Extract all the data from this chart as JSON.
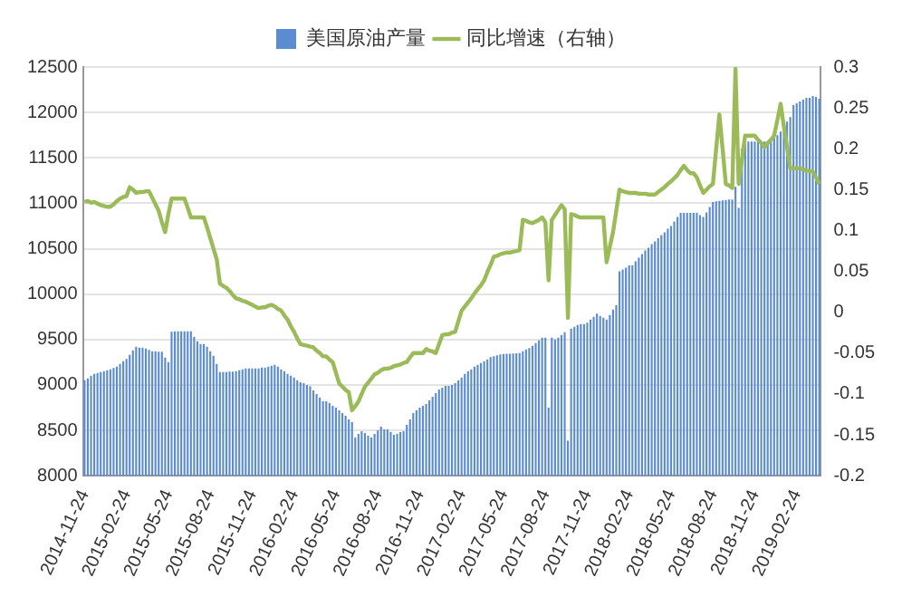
{
  "chart_data": {
    "type": "bar",
    "legend": "top",
    "grid": "y",
    "categories": [
      "2014-11-24",
      null,
      null,
      null,
      null,
      null,
      null,
      null,
      null,
      null,
      null,
      null,
      null,
      "2015-02-24",
      null,
      null,
      null,
      null,
      null,
      null,
      null,
      null,
      null,
      null,
      null,
      null,
      "2015-05-24",
      null,
      null,
      null,
      null,
      null,
      null,
      null,
      null,
      null,
      null,
      null,
      null,
      "2015-08-24",
      null,
      null,
      null,
      null,
      null,
      null,
      null,
      null,
      null,
      null,
      null,
      null,
      "2015-11-24",
      null,
      null,
      null,
      null,
      null,
      null,
      null,
      null,
      null,
      null,
      null,
      null,
      "2016-02-24",
      null,
      null,
      null,
      null,
      null,
      null,
      null,
      null,
      null,
      null,
      null,
      null,
      "2016-05-24",
      null,
      null,
      null,
      null,
      null,
      null,
      null,
      null,
      null,
      null,
      null,
      null,
      "2016-08-24",
      null,
      null,
      null,
      null,
      null,
      null,
      null,
      null,
      null,
      null,
      null,
      null,
      "2016-11-24",
      null,
      null,
      null,
      null,
      null,
      null,
      null,
      null,
      null,
      null,
      null,
      null,
      "2017-02-24",
      null,
      null,
      null,
      null,
      null,
      null,
      null,
      null,
      null,
      null,
      null,
      null,
      "2017-05-24",
      null,
      null,
      null,
      null,
      null,
      null,
      null,
      null,
      null,
      null,
      null,
      null,
      "2017-08-24",
      null,
      null,
      null,
      null,
      null,
      null,
      null,
      null,
      null,
      null,
      null,
      null,
      "2017-11-24",
      null,
      null,
      null,
      null,
      null,
      null,
      null,
      null,
      null,
      null,
      null,
      null,
      "2018-02-24",
      null,
      null,
      null,
      null,
      null,
      null,
      null,
      null,
      null,
      null,
      null,
      null,
      "2018-05-24",
      null,
      null,
      null,
      null,
      null,
      null,
      null,
      null,
      null,
      null,
      null,
      null,
      "2018-08-24",
      null,
      null,
      null,
      null,
      null,
      null,
      null,
      null,
      null,
      null,
      null,
      null,
      "2018-11-24",
      null,
      null,
      null,
      null,
      null,
      null,
      null,
      null,
      null,
      null,
      null,
      null,
      "2019-02-24",
      null,
      null,
      null,
      null,
      null,
      null,
      null
    ],
    "ylim": [
      8000,
      12500
    ],
    "yticks": [
      8000,
      8500,
      9000,
      9500,
      10000,
      10500,
      11000,
      11500,
      12000,
      12500
    ],
    "y2lim": [
      -0.2,
      0.3
    ],
    "y2ticks": [
      -0.2,
      -0.15,
      -0.1,
      -0.05,
      0,
      0.05,
      0.1,
      0.15,
      0.2,
      0.25,
      0.3
    ],
    "series": [
      {
        "name": "美国原油产量",
        "color": "#5b8bd0",
        "values": [
          9050,
          9070,
          9100,
          9120,
          9130,
          9140,
          9150,
          9160,
          9170,
          9185,
          9200,
          9230,
          9260,
          9285,
          9330,
          9380,
          9420,
          9410,
          9410,
          9400,
          9385,
          9370,
          9370,
          9365,
          9365,
          9300,
          9250,
          9585,
          9590,
          9590,
          9590,
          9590,
          9590,
          9590,
          9530,
          9480,
          9450,
          9450,
          9420,
          9370,
          9320,
          9230,
          9140,
          9140,
          9140,
          9145,
          9145,
          9150,
          9160,
          9170,
          9180,
          9180,
          9180,
          9180,
          9180,
          9190,
          9190,
          9200,
          9210,
          9220,
          9200,
          9170,
          9150,
          9120,
          9100,
          9080,
          9050,
          9030,
          9020,
          9000,
          8985,
          8940,
          8900,
          8860,
          8820,
          8820,
          8800,
          8770,
          8750,
          8720,
          8690,
          8660,
          8620,
          8590,
          8420,
          8460,
          8490,
          8470,
          8440,
          8420,
          8460,
          8500,
          8540,
          8510,
          8510,
          8480,
          8450,
          8460,
          8480,
          8490,
          8560,
          8620,
          8690,
          8720,
          8750,
          8770,
          8790,
          8830,
          8870,
          8910,
          8950,
          8970,
          8990,
          8990,
          9000,
          9020,
          9050,
          9080,
          9120,
          9150,
          9170,
          9200,
          9220,
          9240,
          9260,
          9280,
          9305,
          9315,
          9325,
          9335,
          9340,
          9343,
          9343,
          9345,
          9348,
          9350,
          9370,
          9390,
          9405,
          9430,
          9460,
          9490,
          9520,
          9520,
          8750,
          9520,
          9500,
          9520,
          9550,
          9580,
          8385,
          9620,
          9640,
          9660,
          9670,
          9670,
          9685,
          9720,
          9750,
          9785,
          9760,
          9740,
          9720,
          9770,
          9830,
          9880,
          10250,
          10270,
          10290,
          10315,
          10315,
          10360,
          10400,
          10440,
          10480,
          10510,
          10550,
          10580,
          10615,
          10650,
          10680,
          10720,
          10750,
          10800,
          10850,
          10895,
          10895,
          10895,
          10895,
          10895,
          10895,
          10870,
          10850,
          10900,
          10960,
          11015,
          11020,
          11025,
          11030,
          11035,
          11040,
          11040,
          11180,
          10950,
          11600,
          11650,
          11680,
          11680,
          11680,
          11680,
          11680,
          11680,
          11680,
          11680,
          11720,
          11750,
          11790,
          11830,
          11900,
          11950,
          12080,
          12100,
          12120,
          12140,
          12160,
          12160,
          12180,
          12170,
          12150
        ]
      },
      {
        "name": "同比增速（右轴）",
        "type": "line",
        "axis": "y2",
        "color": "#9bbb59",
        "values": [
          0.135,
          0.136,
          0.134,
          0.135,
          0.133,
          0.131,
          0.13,
          0.129,
          0.129,
          0.132,
          0.136,
          0.139,
          0.141,
          0.142,
          0.153,
          0.15,
          0.146,
          0.147,
          0.147,
          0.148,
          0.148,
          0.14,
          0.132,
          0.124,
          0.11,
          0.098,
          0.12,
          0.139,
          0.139,
          0.139,
          0.139,
          0.139,
          0.128,
          0.116,
          0.116,
          0.116,
          0.116,
          0.116,
          0.104,
          0.091,
          0.078,
          0.065,
          0.035,
          0.032,
          0.03,
          0.026,
          0.021,
          0.017,
          0.016,
          0.014,
          0.013,
          0.011,
          0.009,
          0.007,
          0.005,
          0.006,
          0.006,
          0.008,
          0.009,
          0.007,
          0.004,
          0.002,
          -0.004,
          -0.009,
          -0.017,
          -0.024,
          -0.032,
          -0.039,
          -0.04,
          -0.041,
          -0.042,
          -0.043,
          -0.047,
          -0.05,
          -0.054,
          -0.054,
          -0.058,
          -0.061,
          -0.074,
          -0.087,
          -0.091,
          -0.095,
          -0.098,
          -0.12,
          -0.115,
          -0.109,
          -0.1,
          -0.091,
          -0.086,
          -0.081,
          -0.076,
          -0.074,
          -0.071,
          -0.069,
          -0.069,
          -0.068,
          -0.066,
          -0.065,
          -0.064,
          -0.062,
          -0.061,
          -0.055,
          -0.05,
          -0.05,
          -0.05,
          -0.05,
          -0.045,
          -0.047,
          -0.048,
          -0.05,
          -0.039,
          -0.028,
          -0.027,
          -0.027,
          -0.025,
          -0.024,
          -0.011,
          0.002,
          0.007,
          0.012,
          0.017,
          0.023,
          0.028,
          0.033,
          0.039,
          0.049,
          0.058,
          0.068,
          0.069,
          0.071,
          0.072,
          0.073,
          0.073,
          0.074,
          0.075,
          0.076,
          0.113,
          0.112,
          0.11,
          0.109,
          0.111,
          0.113,
          0.116,
          0.11,
          0.039,
          0.113,
          0.119,
          0.125,
          0.131,
          0.126,
          -0.007,
          0.12,
          0.119,
          0.117,
          0.116,
          0.116,
          0.116,
          0.116,
          0.116,
          0.116,
          0.116,
          0.116,
          0.061,
          0.08,
          0.098,
          0.124,
          0.15,
          0.148,
          0.147,
          0.146,
          0.146,
          0.146,
          0.145,
          0.145,
          0.145,
          0.144,
          0.144,
          0.144,
          0.147,
          0.15,
          0.153,
          0.157,
          0.16,
          0.164,
          0.168,
          0.174,
          0.179,
          0.174,
          0.17,
          0.17,
          0.165,
          0.155,
          0.146,
          0.15,
          0.154,
          0.157,
          0.2,
          0.242,
          0.2,
          0.157,
          0.155,
          0.152,
          0.298,
          0.157,
          0.187,
          0.216,
          0.216,
          0.216,
          0.216,
          0.211,
          0.207,
          0.202,
          0.207,
          0.211,
          0.216,
          0.235,
          0.255,
          0.228,
          0.202,
          0.176,
          0.176,
          0.176,
          0.176,
          0.175,
          0.173,
          0.173,
          0.172,
          0.165,
          0.157
        ]
      }
    ]
  }
}
